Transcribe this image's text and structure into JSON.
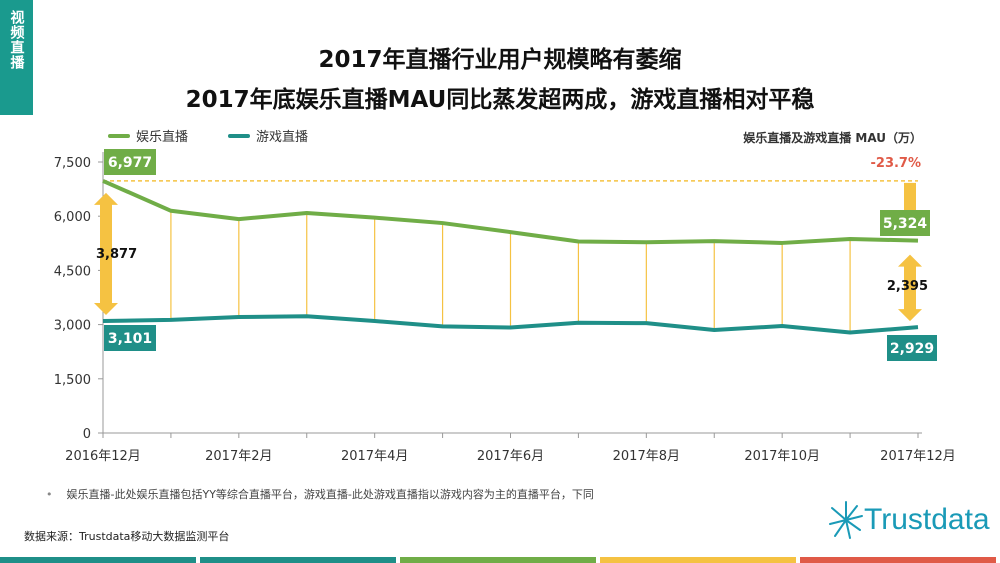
{
  "side_tab": "视频直播",
  "title_line1": "2017年直播行业用户规模略有萎缩",
  "title_line2": "2017年底娱乐直播MAU同比蒸发超两成，游戏直播相对平稳",
  "unit_label": "娱乐直播及游戏直播 MAU（万）",
  "note": "娱乐直播-此处娱乐直播包括YY等综合直播平台，游戏直播-此处游戏直播指以游戏内容为主的直播平台，下同",
  "source": "数据来源：Trustdata移动大数据监测平台",
  "logo_text": "Trustdata",
  "colors": {
    "entertainment": "#70ad47",
    "gaming": "#1f8f88",
    "connector": "#f5c242",
    "change": "#e05a47",
    "bottom_bar": [
      "#1f8f88",
      "#1f8f88",
      "#70ad47",
      "#f5c242",
      "#e05a47"
    ]
  },
  "chart_data": {
    "type": "line",
    "x": [
      "2016年12月",
      "2017年1月",
      "2017年2月",
      "2017年3月",
      "2017年4月",
      "2017年5月",
      "2017年6月",
      "2017年7月",
      "2017年8月",
      "2017年9月",
      "2017年10月",
      "2017年11月",
      "2017年12月"
    ],
    "x_tick_labels": [
      "2016年12月",
      "",
      "2017年2月",
      "",
      "2017年4月",
      "",
      "2017年6月",
      "",
      "2017年8月",
      "",
      "2017年10月",
      "",
      "2017年12月"
    ],
    "series": [
      {
        "name": "娱乐直播",
        "values": [
          6977,
          6150,
          5920,
          6090,
          5960,
          5810,
          5560,
          5300,
          5280,
          5310,
          5260,
          5370,
          5324
        ]
      },
      {
        "name": "游戏直播",
        "values": [
          3101,
          3130,
          3210,
          3230,
          3100,
          2950,
          2920,
          3050,
          3040,
          2850,
          2960,
          2780,
          2929
        ]
      }
    ],
    "ylim": [
      0,
      7500
    ],
    "yticks": [
      "0",
      "1,500",
      "3,000",
      "4,500",
      "6,000",
      "7,500"
    ],
    "ytick_values": [
      0,
      1500,
      3000,
      4500,
      6000,
      7500
    ],
    "data_labels": {
      "ent_start": "6,977",
      "ent_end": "5,324",
      "game_start": "3,101",
      "game_end": "2,929",
      "gap_start": "3,877",
      "gap_end": "2,395",
      "change": "-23.7%"
    },
    "legend": "top-left"
  }
}
